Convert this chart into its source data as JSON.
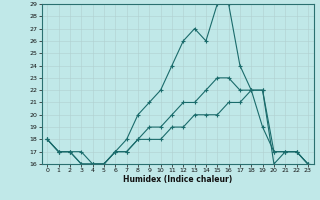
{
  "xlabel": "Humidex (Indice chaleur)",
  "bg_color": "#c0e8e8",
  "line_color": "#1a6b6b",
  "grid_color": "#b0d0d0",
  "xlim": [
    -0.5,
    23.5
  ],
  "ylim": [
    16,
    29
  ],
  "yticks": [
    16,
    17,
    18,
    19,
    20,
    21,
    22,
    23,
    24,
    25,
    26,
    27,
    28,
    29
  ],
  "xticks": [
    0,
    1,
    2,
    3,
    4,
    5,
    6,
    7,
    8,
    9,
    10,
    11,
    12,
    13,
    14,
    15,
    16,
    17,
    18,
    19,
    20,
    21,
    22,
    23
  ],
  "series": [
    {
      "x": [
        0,
        1,
        2,
        3,
        4,
        5,
        6,
        7,
        8,
        9,
        10,
        11,
        12,
        13,
        14,
        15,
        16,
        17,
        18,
        19,
        20,
        21,
        22,
        23
      ],
      "y": [
        18,
        17,
        17,
        17,
        16,
        16,
        17,
        18,
        20,
        21,
        22,
        24,
        26,
        27,
        26,
        29,
        29,
        24,
        22,
        22,
        16,
        17,
        17,
        16
      ]
    },
    {
      "x": [
        0,
        1,
        2,
        3,
        4,
        5,
        6,
        7,
        8,
        9,
        10,
        11,
        12,
        13,
        14,
        15,
        16,
        17,
        18,
        19,
        20,
        21,
        22,
        23
      ],
      "y": [
        18,
        17,
        17,
        16,
        16,
        16,
        17,
        17,
        18,
        19,
        19,
        20,
        21,
        21,
        22,
        23,
        23,
        22,
        22,
        22,
        17,
        17,
        17,
        16
      ]
    },
    {
      "x": [
        0,
        1,
        2,
        3,
        4,
        5,
        6,
        7,
        8,
        9,
        10,
        11,
        12,
        13,
        14,
        15,
        16,
        17,
        18,
        19,
        20,
        21,
        22,
        23
      ],
      "y": [
        18,
        17,
        17,
        16,
        16,
        16,
        17,
        17,
        18,
        18,
        18,
        19,
        19,
        20,
        20,
        20,
        21,
        21,
        22,
        19,
        17,
        17,
        17,
        16
      ]
    }
  ]
}
